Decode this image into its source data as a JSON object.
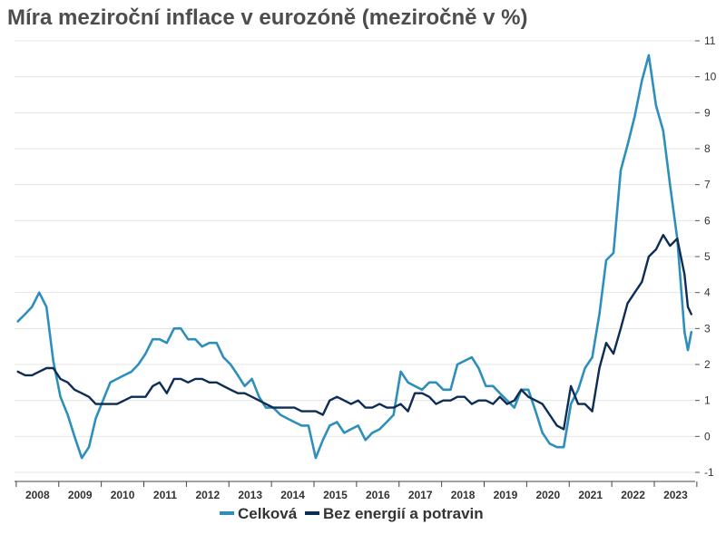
{
  "chart_data": {
    "type": "line",
    "title": "Míra meziroční inflace v eurozóně (meziročně v %)",
    "xlabel": "",
    "ylabel": "",
    "ylim": [
      -1,
      11
    ],
    "y_ticks": [
      -1,
      0,
      1,
      2,
      3,
      4,
      5,
      6,
      7,
      8,
      9,
      10,
      11
    ],
    "y_axis_side": "right",
    "grid": "horizontal",
    "legend_position": "bottom-center",
    "x_range": [
      "2008-01",
      "2023-07"
    ],
    "categories": [
      "2008",
      "2009",
      "2010",
      "2011",
      "2012",
      "2013",
      "2014",
      "2015",
      "2016",
      "2017",
      "2018",
      "2019",
      "2020",
      "2021",
      "2022",
      "2023"
    ],
    "x_frequency": "monthly (point sampled every 2 months)",
    "series": [
      {
        "name": "Celková",
        "color": "#2e8fbd",
        "values": [
          [
            2008.0,
            3.2
          ],
          [
            2008.17,
            3.4
          ],
          [
            2008.33,
            3.6
          ],
          [
            2008.5,
            4.0
          ],
          [
            2008.67,
            3.6
          ],
          [
            2008.83,
            2.1
          ],
          [
            2009.0,
            1.1
          ],
          [
            2009.17,
            0.6
          ],
          [
            2009.33,
            0.0
          ],
          [
            2009.5,
            -0.6
          ],
          [
            2009.67,
            -0.3
          ],
          [
            2009.83,
            0.5
          ],
          [
            2010.0,
            1.0
          ],
          [
            2010.17,
            1.5
          ],
          [
            2010.33,
            1.6
          ],
          [
            2010.5,
            1.7
          ],
          [
            2010.67,
            1.8
          ],
          [
            2010.83,
            2.0
          ],
          [
            2011.0,
            2.3
          ],
          [
            2011.17,
            2.7
          ],
          [
            2011.33,
            2.7
          ],
          [
            2011.5,
            2.6
          ],
          [
            2011.67,
            3.0
          ],
          [
            2011.83,
            3.0
          ],
          [
            2012.0,
            2.7
          ],
          [
            2012.17,
            2.7
          ],
          [
            2012.33,
            2.5
          ],
          [
            2012.5,
            2.6
          ],
          [
            2012.67,
            2.6
          ],
          [
            2012.83,
            2.2
          ],
          [
            2013.0,
            2.0
          ],
          [
            2013.17,
            1.7
          ],
          [
            2013.33,
            1.4
          ],
          [
            2013.5,
            1.6
          ],
          [
            2013.67,
            1.1
          ],
          [
            2013.83,
            0.8
          ],
          [
            2014.0,
            0.8
          ],
          [
            2014.17,
            0.6
          ],
          [
            2014.33,
            0.5
          ],
          [
            2014.5,
            0.4
          ],
          [
            2014.67,
            0.3
          ],
          [
            2014.83,
            0.3
          ],
          [
            2015.0,
            -0.6
          ],
          [
            2015.17,
            -0.1
          ],
          [
            2015.33,
            0.3
          ],
          [
            2015.5,
            0.4
          ],
          [
            2015.67,
            0.1
          ],
          [
            2015.83,
            0.2
          ],
          [
            2016.0,
            0.3
          ],
          [
            2016.17,
            -0.1
          ],
          [
            2016.33,
            0.1
          ],
          [
            2016.5,
            0.2
          ],
          [
            2016.67,
            0.4
          ],
          [
            2016.83,
            0.6
          ],
          [
            2017.0,
            1.8
          ],
          [
            2017.17,
            1.5
          ],
          [
            2017.33,
            1.4
          ],
          [
            2017.5,
            1.3
          ],
          [
            2017.67,
            1.5
          ],
          [
            2017.83,
            1.5
          ],
          [
            2018.0,
            1.3
          ],
          [
            2018.17,
            1.3
          ],
          [
            2018.33,
            2.0
          ],
          [
            2018.5,
            2.1
          ],
          [
            2018.67,
            2.2
          ],
          [
            2018.83,
            1.9
          ],
          [
            2019.0,
            1.4
          ],
          [
            2019.17,
            1.4
          ],
          [
            2019.33,
            1.2
          ],
          [
            2019.5,
            1.0
          ],
          [
            2019.67,
            0.8
          ],
          [
            2019.83,
            1.3
          ],
          [
            2020.0,
            1.3
          ],
          [
            2020.17,
            0.7
          ],
          [
            2020.33,
            0.1
          ],
          [
            2020.5,
            -0.2
          ],
          [
            2020.67,
            -0.3
          ],
          [
            2020.83,
            -0.3
          ],
          [
            2021.0,
            0.9
          ],
          [
            2021.17,
            1.3
          ],
          [
            2021.33,
            1.9
          ],
          [
            2021.5,
            2.2
          ],
          [
            2021.67,
            3.4
          ],
          [
            2021.83,
            4.9
          ],
          [
            2022.0,
            5.1
          ],
          [
            2022.17,
            7.4
          ],
          [
            2022.33,
            8.1
          ],
          [
            2022.5,
            8.9
          ],
          [
            2022.67,
            9.9
          ],
          [
            2022.83,
            10.6
          ],
          [
            2023.0,
            9.2
          ],
          [
            2023.17,
            8.5
          ],
          [
            2023.33,
            7.0
          ],
          [
            2023.5,
            5.5
          ],
          [
            2023.67,
            2.9
          ],
          [
            2023.75,
            2.4
          ],
          [
            2023.83,
            2.9
          ]
        ]
      },
      {
        "name": "Bez energií a potravin",
        "color": "#0d2d54",
        "values": [
          [
            2008.0,
            1.8
          ],
          [
            2008.17,
            1.7
          ],
          [
            2008.33,
            1.7
          ],
          [
            2008.5,
            1.8
          ],
          [
            2008.67,
            1.9
          ],
          [
            2008.83,
            1.9
          ],
          [
            2009.0,
            1.6
          ],
          [
            2009.17,
            1.5
          ],
          [
            2009.33,
            1.3
          ],
          [
            2009.5,
            1.2
          ],
          [
            2009.67,
            1.1
          ],
          [
            2009.83,
            0.9
          ],
          [
            2010.0,
            0.9
          ],
          [
            2010.17,
            0.9
          ],
          [
            2010.33,
            0.9
          ],
          [
            2010.5,
            1.0
          ],
          [
            2010.67,
            1.1
          ],
          [
            2010.83,
            1.1
          ],
          [
            2011.0,
            1.1
          ],
          [
            2011.17,
            1.4
          ],
          [
            2011.33,
            1.5
          ],
          [
            2011.5,
            1.2
          ],
          [
            2011.67,
            1.6
          ],
          [
            2011.83,
            1.6
          ],
          [
            2012.0,
            1.5
          ],
          [
            2012.17,
            1.6
          ],
          [
            2012.33,
            1.6
          ],
          [
            2012.5,
            1.5
          ],
          [
            2012.67,
            1.5
          ],
          [
            2012.83,
            1.4
          ],
          [
            2013.0,
            1.3
          ],
          [
            2013.17,
            1.2
          ],
          [
            2013.33,
            1.2
          ],
          [
            2013.5,
            1.1
          ],
          [
            2013.67,
            1.0
          ],
          [
            2013.83,
            0.9
          ],
          [
            2014.0,
            0.8
          ],
          [
            2014.17,
            0.8
          ],
          [
            2014.33,
            0.8
          ],
          [
            2014.5,
            0.8
          ],
          [
            2014.67,
            0.7
          ],
          [
            2014.83,
            0.7
          ],
          [
            2015.0,
            0.7
          ],
          [
            2015.17,
            0.6
          ],
          [
            2015.33,
            1.0
          ],
          [
            2015.5,
            1.1
          ],
          [
            2015.67,
            1.0
          ],
          [
            2015.83,
            0.9
          ],
          [
            2016.0,
            1.0
          ],
          [
            2016.17,
            0.8
          ],
          [
            2016.33,
            0.8
          ],
          [
            2016.5,
            0.9
          ],
          [
            2016.67,
            0.8
          ],
          [
            2016.83,
            0.8
          ],
          [
            2017.0,
            0.9
          ],
          [
            2017.17,
            0.7
          ],
          [
            2017.33,
            1.2
          ],
          [
            2017.5,
            1.2
          ],
          [
            2017.67,
            1.1
          ],
          [
            2017.83,
            0.9
          ],
          [
            2018.0,
            1.0
          ],
          [
            2018.17,
            1.0
          ],
          [
            2018.33,
            1.1
          ],
          [
            2018.5,
            1.1
          ],
          [
            2018.67,
            0.9
          ],
          [
            2018.83,
            1.0
          ],
          [
            2019.0,
            1.0
          ],
          [
            2019.17,
            0.9
          ],
          [
            2019.33,
            1.1
          ],
          [
            2019.5,
            0.9
          ],
          [
            2019.67,
            1.0
          ],
          [
            2019.83,
            1.3
          ],
          [
            2020.0,
            1.1
          ],
          [
            2020.17,
            1.0
          ],
          [
            2020.33,
            0.9
          ],
          [
            2020.5,
            0.6
          ],
          [
            2020.67,
            0.3
          ],
          [
            2020.83,
            0.2
          ],
          [
            2021.0,
            1.4
          ],
          [
            2021.17,
            0.9
          ],
          [
            2021.33,
            0.9
          ],
          [
            2021.5,
            0.7
          ],
          [
            2021.67,
            1.9
          ],
          [
            2021.83,
            2.6
          ],
          [
            2022.0,
            2.3
          ],
          [
            2022.17,
            3.0
          ],
          [
            2022.33,
            3.7
          ],
          [
            2022.5,
            4.0
          ],
          [
            2022.67,
            4.3
          ],
          [
            2022.83,
            5.0
          ],
          [
            2023.0,
            5.2
          ],
          [
            2023.17,
            5.6
          ],
          [
            2023.33,
            5.3
          ],
          [
            2023.5,
            5.5
          ],
          [
            2023.67,
            4.5
          ],
          [
            2023.75,
            3.6
          ],
          [
            2023.83,
            3.4
          ]
        ]
      }
    ]
  }
}
